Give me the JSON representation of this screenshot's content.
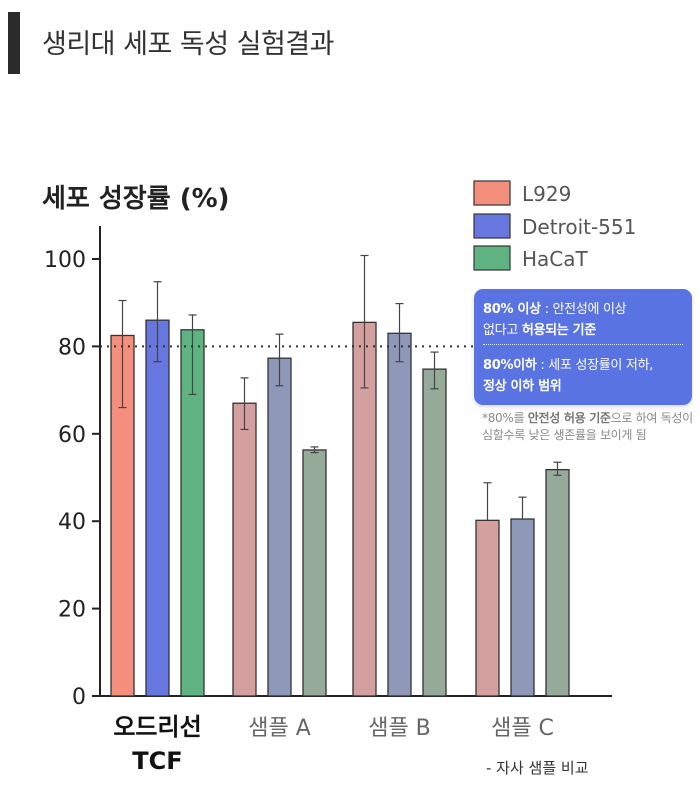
{
  "page_title": "생리대 세포 독성 실험결과",
  "chart_data": {
    "type": "bar",
    "title": "세포 성장률 (%)",
    "categories": [
      "오드리선\nTCF",
      "샘플 A",
      "샘플 B",
      "샘플 C"
    ],
    "series": [
      {
        "name": "L929",
        "values": [
          82.5,
          67.0,
          85.5,
          40.2
        ],
        "err_low": [
          66,
          61,
          70.5,
          40.2
        ],
        "err_high": [
          90.5,
          72.8,
          100.8,
          48.8
        ]
      },
      {
        "name": "Detroit-551",
        "values": [
          86.0,
          77.3,
          83.0,
          40.5
        ],
        "err_low": [
          76.5,
          71,
          76.5,
          40.5
        ],
        "err_high": [
          94.8,
          82.8,
          89.8,
          45.5
        ]
      },
      {
        "name": "HaCaT",
        "values": [
          83.8,
          56.3,
          74.8,
          51.8
        ],
        "err_low": [
          69,
          55.7,
          70.3,
          50.5
        ],
        "err_high": [
          87.2,
          57.0,
          78.7,
          53.5
        ]
      }
    ],
    "ylim": [
      0,
      100
    ],
    "yticks": [
      0,
      20,
      40,
      60,
      80,
      100
    ],
    "reference_line": 80,
    "legend_position": "top-right",
    "colors": {
      "reference": [
        "#f48f7d",
        "#6677e0",
        "#5fb381"
      ],
      "samples": [
        "#d4a09f",
        "#8e98b8",
        "#95aa98"
      ]
    },
    "grid": false
  },
  "annotation": {
    "line1_bold": "80% 이상",
    "line1_rest": " : 안전성에 이상",
    "line2_plain": "없다고 ",
    "line2_bold": "허용되는 기준",
    "line3_bold": "80%이하",
    "line3_rest": " : 세포 성장률이 저하,",
    "line4_bold": "정상 이하 범위"
  },
  "footnote": {
    "prefix": "*80%를 ",
    "bold": "안전성 허용 기준",
    "suffix": "으로 하여 독성이 심할수록 낮은 생존률을 보이게 됨"
  },
  "comparison_note": "- 자사 샘플 비교"
}
